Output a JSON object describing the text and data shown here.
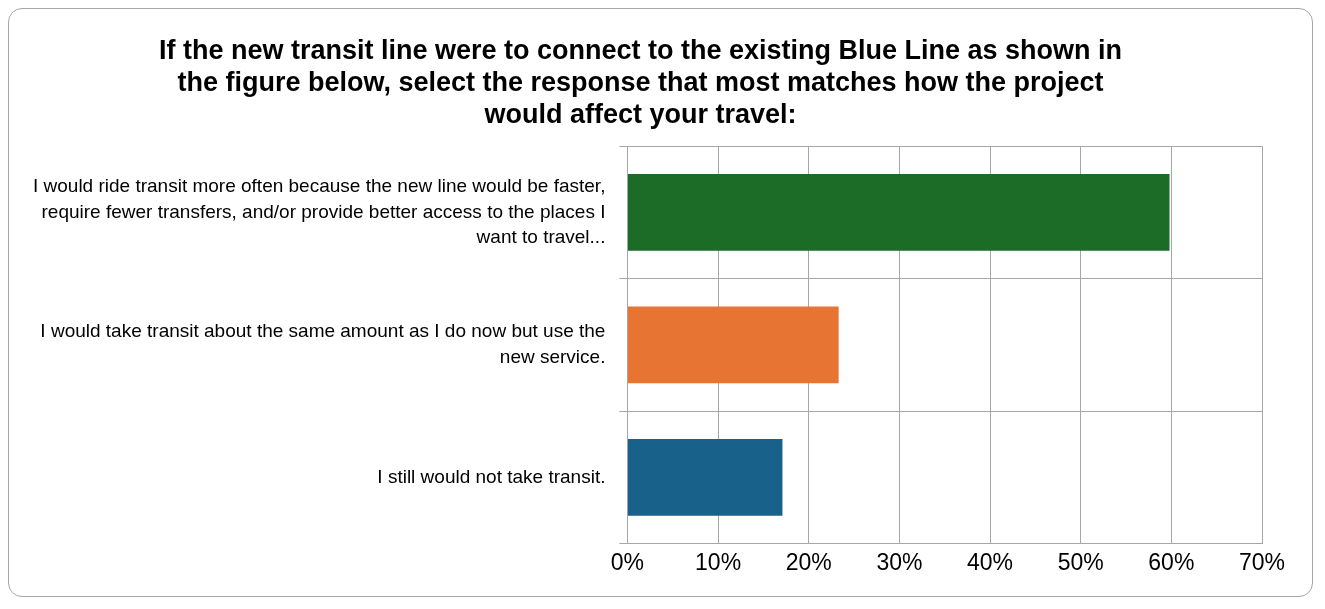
{
  "chart_data": {
    "type": "bar",
    "orientation": "horizontal",
    "title": "If the new transit line were to connect to the existing Blue Line as shown in the figure below, select the response that most matches how the project would affect your travel:",
    "categories": [
      "I would ride transit more often because the new line would be faster, require fewer transfers, and/or provide better access to the places I want to travel...",
      "I would take transit about the same amount as I do now but use the new service.",
      "I still would not take transit."
    ],
    "values": [
      0.598,
      0.233,
      0.171
    ],
    "colors": [
      "#1c6b27",
      "#e87433",
      "#17618a"
    ],
    "xlim": [
      0,
      0.7
    ],
    "xticks": [
      {
        "value": 0,
        "label": "0%"
      },
      {
        "value": 0.1,
        "label": "10%"
      },
      {
        "value": 0.2,
        "label": "20%"
      },
      {
        "value": 0.3,
        "label": "30%"
      },
      {
        "value": 0.4,
        "label": "40%"
      },
      {
        "value": 0.5,
        "label": "50%"
      },
      {
        "value": 0.6,
        "label": "60%"
      },
      {
        "value": 0.7,
        "label": "70%"
      }
    ],
    "grid": true,
    "legend": false
  }
}
